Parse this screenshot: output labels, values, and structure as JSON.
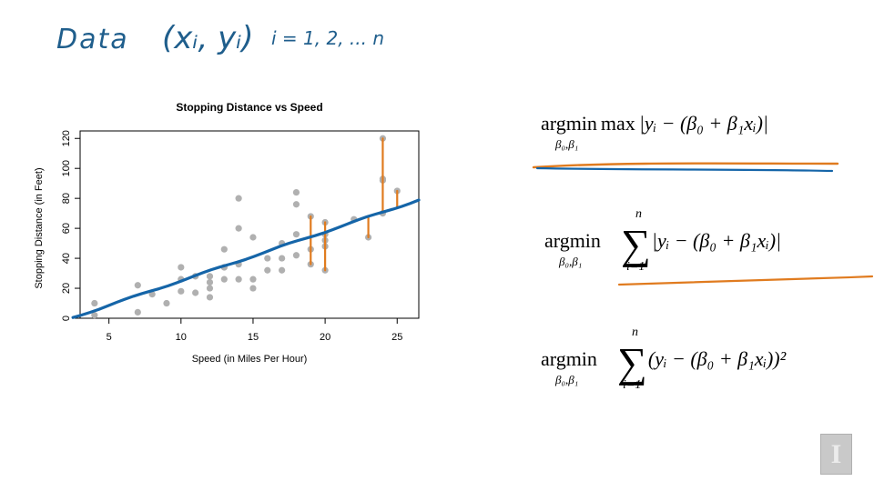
{
  "handwriting": {
    "data_word": "Data",
    "pair": "(xᵢ, yᵢ)",
    "index": "i = 1, 2, ... n"
  },
  "formulas": [
    {
      "op": "argmin",
      "op2": "max",
      "sub": "β₀,β₁",
      "body": "|yᵢ − (β₀ + β₁xᵢ)|"
    },
    {
      "op": "argmin",
      "sub": "β₀,β₁",
      "sum_top": "n",
      "sum_bot": "i=1",
      "body": "|yᵢ − (β₀ + β₁xᵢ)|"
    },
    {
      "op": "argmin",
      "sub": "β₀,β₁",
      "sum_top": "n",
      "sum_bot": "i=1",
      "body": "(yᵢ − (β₀ + β₁xᵢ))²"
    }
  ],
  "chart_data": {
    "type": "scatter",
    "title": "Stopping Distance vs Speed",
    "xlabel": "Speed (in Miles Per Hour)",
    "ylabel": "Stopping Distance (in Feet)",
    "xlim": [
      3,
      26.5
    ],
    "ylim": [
      0,
      125
    ],
    "xticks": [
      5,
      10,
      15,
      20,
      25
    ],
    "yticks": [
      0,
      20,
      40,
      60,
      80,
      100,
      120
    ],
    "point_color": "#b0b0b0",
    "fit_color": "#1565a8",
    "residual_color": "#e07b1f",
    "points": [
      [
        4,
        2
      ],
      [
        4,
        10
      ],
      [
        7,
        4
      ],
      [
        7,
        22
      ],
      [
        8,
        16
      ],
      [
        9,
        10
      ],
      [
        10,
        18
      ],
      [
        10,
        26
      ],
      [
        10,
        34
      ],
      [
        11,
        17
      ],
      [
        11,
        28
      ],
      [
        12,
        14
      ],
      [
        12,
        20
      ],
      [
        12,
        24
      ],
      [
        12,
        28
      ],
      [
        13,
        26
      ],
      [
        13,
        34
      ],
      [
        13,
        34
      ],
      [
        13,
        46
      ],
      [
        14,
        26
      ],
      [
        14,
        36
      ],
      [
        14,
        60
      ],
      [
        14,
        80
      ],
      [
        15,
        20
      ],
      [
        15,
        26
      ],
      [
        15,
        54
      ],
      [
        16,
        32
      ],
      [
        16,
        40
      ],
      [
        17,
        32
      ],
      [
        17,
        40
      ],
      [
        17,
        50
      ],
      [
        18,
        42
      ],
      [
        18,
        56
      ],
      [
        18,
        76
      ],
      [
        18,
        84
      ],
      [
        19,
        36
      ],
      [
        19,
        46
      ],
      [
        19,
        68
      ],
      [
        20,
        32
      ],
      [
        20,
        48
      ],
      [
        20,
        52
      ],
      [
        20,
        56
      ],
      [
        20,
        64
      ],
      [
        22,
        66
      ],
      [
        23,
        54
      ],
      [
        24,
        70
      ],
      [
        24,
        92
      ],
      [
        24,
        93
      ],
      [
        24,
        120
      ],
      [
        25,
        85
      ]
    ],
    "fit_line": {
      "x": [
        2.5,
        26.5
      ],
      "y": [
        0.5,
        79
      ]
    },
    "residuals": [
      [
        19,
        36
      ],
      [
        19,
        68
      ],
      [
        20,
        32
      ],
      [
        20,
        64
      ],
      [
        23,
        54
      ],
      [
        24,
        120
      ],
      [
        25,
        85
      ]
    ]
  }
}
